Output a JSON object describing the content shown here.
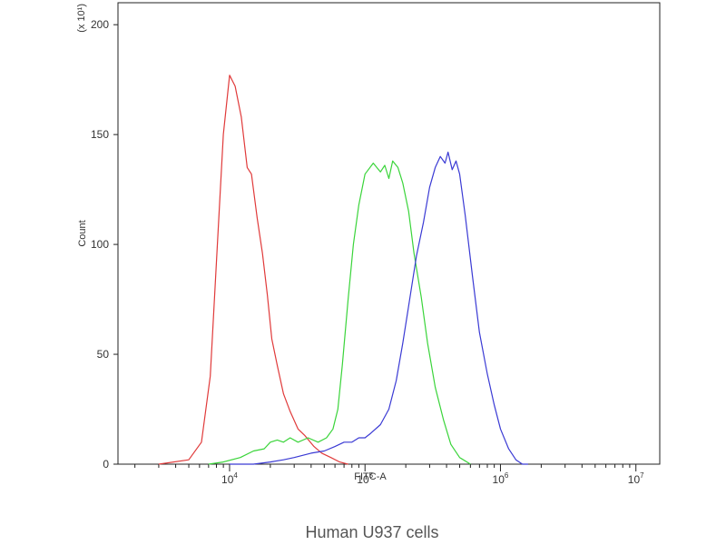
{
  "chart_data": {
    "type": "line",
    "title": "",
    "caption": "Human U937 cells",
    "xlabel": "FITC-A",
    "ylabel": "Count",
    "y_multiplier": "(x 10¹)",
    "x_scale": "log",
    "xlim": [
      1500,
      15000000
    ],
    "ylim": [
      0,
      210
    ],
    "grid": false,
    "legend": "none",
    "y_ticks": [
      0,
      50,
      100,
      150,
      200
    ],
    "x_ticks": [
      {
        "value": 10000,
        "base": "10",
        "exp": "4"
      },
      {
        "value": 100000,
        "base": "10",
        "exp": "5"
      },
      {
        "value": 1000000,
        "base": "10",
        "exp": "6"
      },
      {
        "value": 10000000,
        "base": "10",
        "exp": "7"
      }
    ],
    "series": [
      {
        "color": "#e03a3a",
        "x": [
          3000,
          5000,
          6200,
          7200,
          8000,
          9000,
          10000,
          11000,
          12200,
          13500,
          14500,
          16000,
          17500,
          19000,
          20500,
          22500,
          25000,
          28000,
          32000,
          36000,
          42000,
          48000,
          56000,
          65000,
          75000
        ],
        "y": [
          0,
          2,
          10,
          40,
          92,
          150,
          177,
          172,
          158,
          135,
          132,
          112,
          96,
          77,
          57,
          45,
          32,
          24,
          16,
          13,
          8,
          5,
          3,
          1,
          0
        ]
      },
      {
        "color": "#3ad43a",
        "x": [
          7000,
          9000,
          12000,
          15000,
          18000,
          20000,
          22500,
          25000,
          28000,
          32000,
          38000,
          45000,
          52000,
          58000,
          63000,
          68000,
          75000,
          82000,
          90000,
          100000,
          115000,
          130000,
          140000,
          150000,
          160000,
          175000,
          190000,
          210000,
          230000,
          260000,
          290000,
          330000,
          380000,
          430000,
          500000,
          600000
        ],
        "y": [
          0,
          1,
          3,
          6,
          7,
          10,
          11,
          10,
          12,
          10,
          12,
          10,
          12,
          16,
          25,
          45,
          75,
          100,
          118,
          132,
          137,
          133,
          136,
          130,
          138,
          135,
          128,
          115,
          96,
          76,
          55,
          35,
          20,
          9,
          3,
          0
        ]
      },
      {
        "color": "#3a3ad4",
        "x": [
          10000,
          15000,
          20000,
          25000,
          30000,
          40000,
          50000,
          60000,
          70000,
          80000,
          90000,
          100000,
          110000,
          130000,
          150000,
          170000,
          190000,
          210000,
          240000,
          270000,
          300000,
          330000,
          360000,
          390000,
          410000,
          440000,
          470000,
          500000,
          550000,
          620000,
          700000,
          800000,
          900000,
          1000000,
          1150000,
          1300000,
          1450000,
          1600000
        ],
        "y": [
          0,
          0,
          1,
          2,
          3,
          5,
          6,
          8,
          10,
          10,
          12,
          12,
          14,
          18,
          25,
          38,
          55,
          72,
          95,
          110,
          126,
          135,
          140,
          137,
          142,
          134,
          138,
          132,
          113,
          86,
          60,
          41,
          27,
          16,
          7,
          2,
          0,
          0
        ]
      }
    ]
  }
}
